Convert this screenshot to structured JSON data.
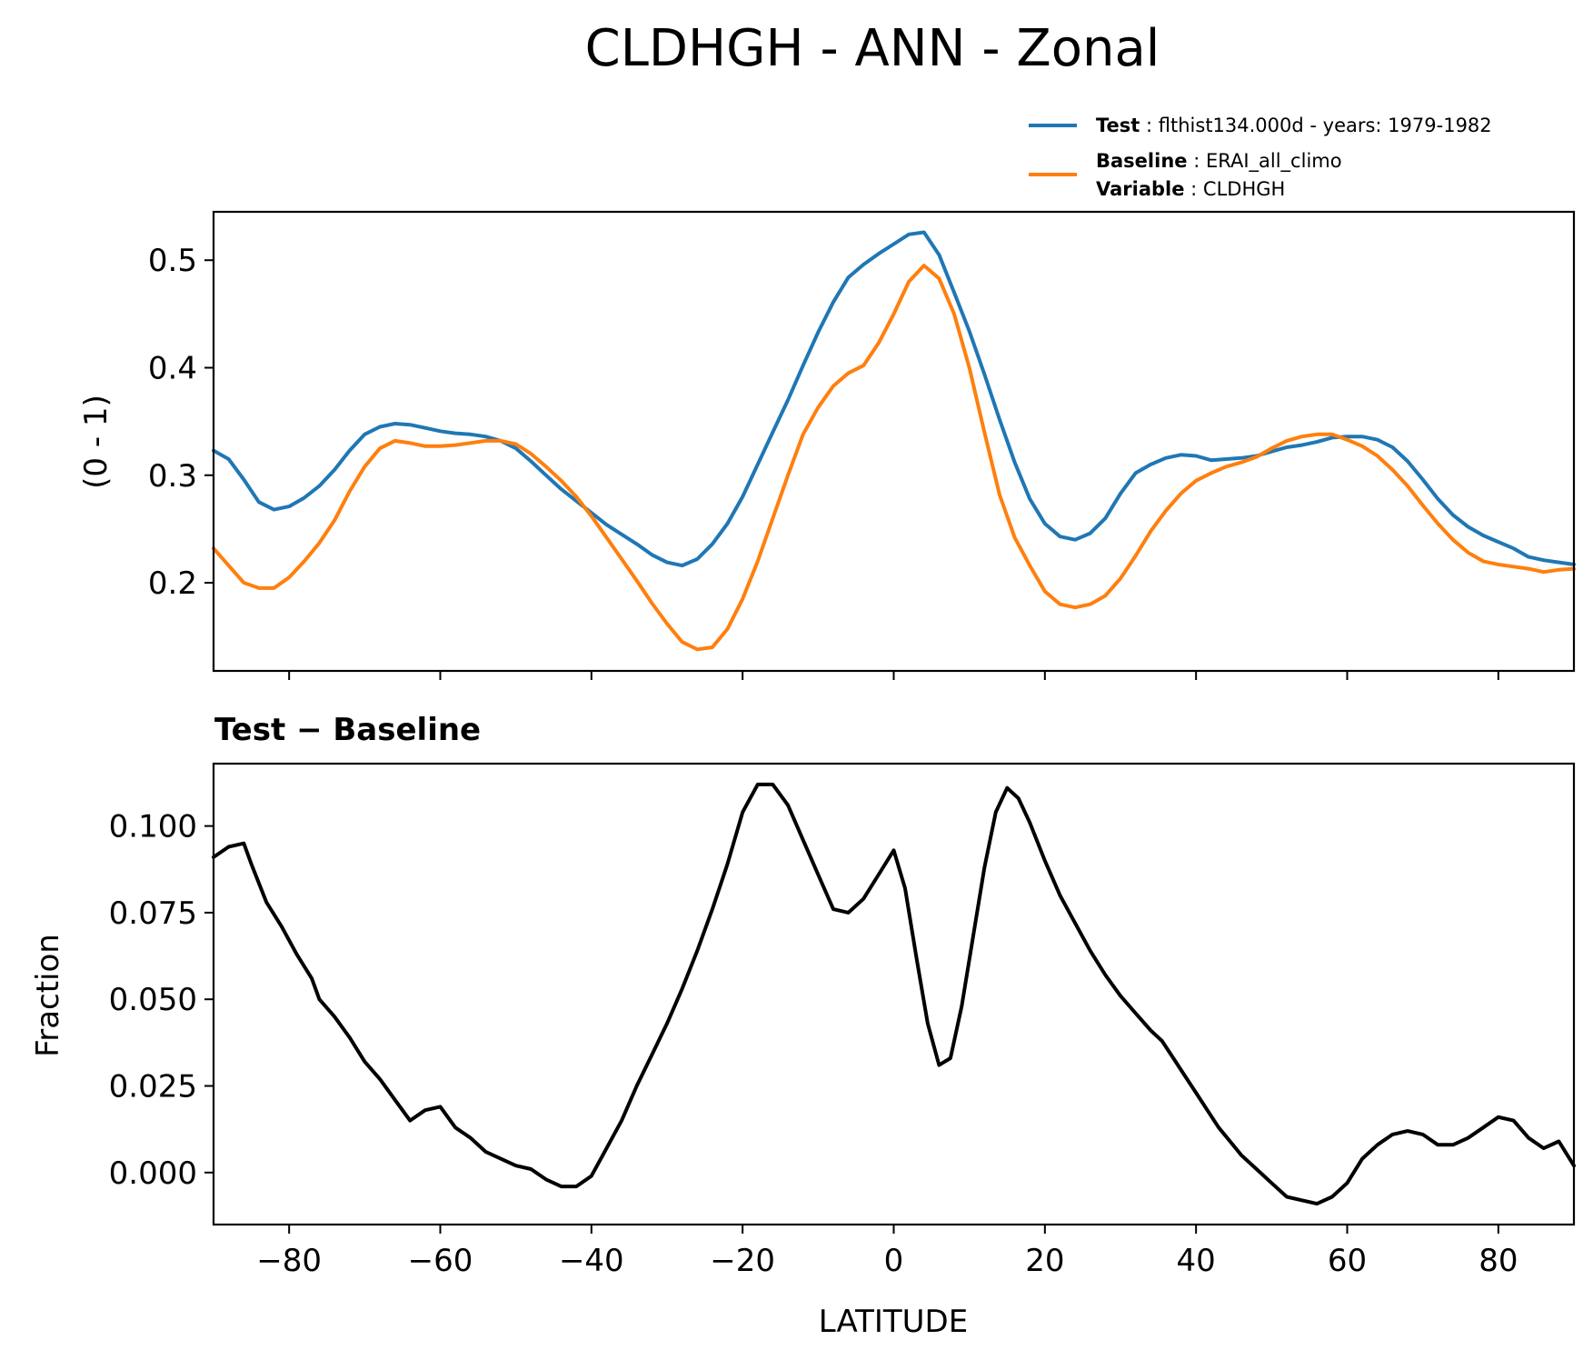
{
  "chart_data": {
    "title": "CLDHGH - ANN - Zonal",
    "colors": {
      "test": "#1f77b4",
      "baseline": "#ff7f0e",
      "diff": "#000000"
    },
    "legend": {
      "test": {
        "key": "Test",
        "text": ": flthist134.000d - years: 1979-1982"
      },
      "baseline": {
        "key": "Baseline",
        "text": ": ERAI_all_climo"
      },
      "variable": {
        "key": "Variable",
        "text": ": CLDHGH"
      }
    },
    "panels": [
      {
        "type": "line",
        "ylabel": "(0 - 1)",
        "xlim": [
          -90,
          90
        ],
        "ylim": [
          0.118,
          0.545
        ],
        "yticks": [
          "0.2",
          "0.3",
          "0.4",
          "0.5"
        ],
        "xticks": [
          -80,
          -60,
          -40,
          -20,
          0,
          20,
          40,
          60,
          80
        ],
        "series": [
          {
            "name": "Test",
            "x": [
              -90,
              -88,
              -86,
              -84,
              -82,
              -80,
              -78,
              -76,
              -74,
              -72,
              -70,
              -68,
              -66,
              -64,
              -62,
              -60,
              -58,
              -56,
              -54,
              -52,
              -50,
              -48,
              -46,
              -44,
              -42,
              -40,
              -38,
              -36,
              -34,
              -32,
              -30,
              -28,
              -26,
              -24,
              -22,
              -20,
              -18,
              -16,
              -14,
              -12,
              -10,
              -8,
              -6,
              -4,
              -2,
              0,
              2,
              4,
              6,
              8,
              10,
              12,
              14,
              16,
              18,
              20,
              22,
              24,
              26,
              28,
              30,
              32,
              34,
              36,
              38,
              40,
              42,
              44,
              46,
              48,
              50,
              52,
              54,
              56,
              58,
              60,
              62,
              64,
              66,
              68,
              70,
              72,
              74,
              76,
              78,
              80,
              82,
              84,
              86,
              88,
              90
            ],
            "y": [
              0.323,
              0.315,
              0.296,
              0.275,
              0.268,
              0.271,
              0.279,
              0.29,
              0.305,
              0.323,
              0.338,
              0.345,
              0.348,
              0.347,
              0.344,
              0.341,
              0.339,
              0.338,
              0.336,
              0.332,
              0.325,
              0.313,
              0.3,
              0.287,
              0.276,
              0.265,
              0.254,
              0.245,
              0.236,
              0.226,
              0.219,
              0.216,
              0.222,
              0.236,
              0.255,
              0.28,
              0.31,
              0.34,
              0.37,
              0.402,
              0.433,
              0.461,
              0.484,
              0.496,
              0.506,
              0.515,
              0.524,
              0.526,
              0.505,
              0.47,
              0.434,
              0.394,
              0.352,
              0.312,
              0.278,
              0.255,
              0.243,
              0.24,
              0.246,
              0.26,
              0.283,
              0.302,
              0.31,
              0.316,
              0.319,
              0.318,
              0.314,
              0.315,
              0.316,
              0.318,
              0.322,
              0.326,
              0.328,
              0.331,
              0.335,
              0.336,
              0.336,
              0.333,
              0.326,
              0.313,
              0.296,
              0.278,
              0.263,
              0.252,
              0.244,
              0.238,
              0.232,
              0.224,
              0.221,
              0.219,
              0.217
            ]
          },
          {
            "name": "Baseline",
            "x": [
              -90,
              -88,
              -86,
              -84,
              -82,
              -80,
              -78,
              -76,
              -74,
              -72,
              -70,
              -68,
              -66,
              -64,
              -62,
              -60,
              -58,
              -56,
              -54,
              -52,
              -50,
              -48,
              -46,
              -44,
              -42,
              -40,
              -38,
              -36,
              -34,
              -32,
              -30,
              -28,
              -26,
              -24,
              -22,
              -20,
              -18,
              -16,
              -14,
              -12,
              -10,
              -8,
              -6,
              -4,
              -2,
              0,
              2,
              4,
              6,
              8,
              10,
              12,
              14,
              16,
              18,
              20,
              22,
              24,
              26,
              28,
              30,
              32,
              34,
              36,
              38,
              40,
              42,
              44,
              46,
              48,
              50,
              52,
              54,
              56,
              58,
              60,
              62,
              64,
              66,
              68,
              70,
              72,
              74,
              76,
              78,
              80,
              82,
              84,
              86,
              88,
              90
            ],
            "y": [
              0.232,
              0.216,
              0.2,
              0.195,
              0.195,
              0.205,
              0.22,
              0.237,
              0.258,
              0.285,
              0.308,
              0.325,
              0.332,
              0.33,
              0.327,
              0.327,
              0.328,
              0.33,
              0.332,
              0.332,
              0.329,
              0.32,
              0.308,
              0.295,
              0.28,
              0.262,
              0.242,
              0.222,
              0.202,
              0.181,
              0.162,
              0.145,
              0.138,
              0.14,
              0.157,
              0.185,
              0.22,
              0.26,
              0.3,
              0.338,
              0.363,
              0.383,
              0.395,
              0.402,
              0.423,
              0.45,
              0.48,
              0.495,
              0.483,
              0.45,
              0.4,
              0.34,
              0.282,
              0.242,
              0.216,
              0.192,
              0.18,
              0.177,
              0.18,
              0.188,
              0.204,
              0.225,
              0.248,
              0.267,
              0.283,
              0.295,
              0.302,
              0.308,
              0.312,
              0.317,
              0.325,
              0.332,
              0.336,
              0.338,
              0.338,
              0.333,
              0.327,
              0.318,
              0.305,
              0.29,
              0.272,
              0.255,
              0.24,
              0.228,
              0.22,
              0.217,
              0.215,
              0.213,
              0.21,
              0.212,
              0.213
            ]
          }
        ]
      },
      {
        "type": "line",
        "title": "Test − Baseline",
        "ylabel": "Fraction",
        "xlabel": "LATITUDE",
        "xlim": [
          -90,
          90
        ],
        "ylim": [
          -0.015,
          0.118
        ],
        "yticks": [
          "0.000",
          "0.025",
          "0.050",
          "0.075",
          "0.100"
        ],
        "xticks": [
          -80,
          -60,
          -40,
          -20,
          0,
          20,
          40,
          60,
          80
        ],
        "xticklabels": [
          "−80",
          "−60",
          "−40",
          "−20",
          "0",
          "20",
          "40",
          "60",
          "80"
        ],
        "series": [
          {
            "x": [
              -90,
              -88,
              -86,
              -85,
              -83,
              -81,
              -79,
              -77,
              -76,
              -74,
              -72,
              -70,
              -68,
              -66,
              -64,
              -62,
              -60,
              -58,
              -56,
              -54,
              -52,
              -50,
              -48,
              -46,
              -44,
              -42,
              -40,
              -38,
              -36,
              -34,
              -32,
              -30,
              -28,
              -26,
              -24,
              -22,
              -20,
              -18,
              -16,
              -14,
              -12,
              -10,
              -8,
              -6,
              -4,
              -2,
              0,
              1.5,
              3,
              4.5,
              6,
              7.5,
              9,
              10.5,
              12,
              13.5,
              15,
              16.5,
              18,
              20,
              22,
              24,
              26,
              28,
              30,
              32,
              34,
              35.5,
              37,
              38.5,
              40,
              41.5,
              43,
              44.5,
              46,
              48,
              50,
              52,
              54,
              56,
              58,
              60,
              62,
              64,
              66,
              68,
              70,
              72,
              74,
              76,
              78,
              80,
              82,
              84,
              86,
              88,
              90
            ],
            "y": [
              0.091,
              0.094,
              0.095,
              0.089,
              0.078,
              0.071,
              0.063,
              0.056,
              0.05,
              0.045,
              0.039,
              0.032,
              0.027,
              0.021,
              0.015,
              0.018,
              0.019,
              0.013,
              0.01,
              0.006,
              0.004,
              0.002,
              0.001,
              -0.002,
              -0.004,
              -0.004,
              -0.001,
              0.007,
              0.015,
              0.025,
              0.034,
              0.043,
              0.053,
              0.064,
              0.076,
              0.089,
              0.104,
              0.112,
              0.112,
              0.106,
              0.096,
              0.086,
              0.076,
              0.075,
              0.079,
              0.086,
              0.093,
              0.082,
              0.062,
              0.043,
              0.031,
              0.033,
              0.048,
              0.068,
              0.088,
              0.104,
              0.111,
              0.108,
              0.101,
              0.09,
              0.08,
              0.072,
              0.064,
              0.057,
              0.051,
              0.046,
              0.041,
              0.038,
              0.033,
              0.028,
              0.023,
              0.018,
              0.013,
              0.009,
              0.005,
              0.001,
              -0.003,
              -0.007,
              -0.008,
              -0.009,
              -0.007,
              -0.003,
              0.004,
              0.008,
              0.011,
              0.012,
              0.011,
              0.008,
              0.008,
              0.01,
              0.013,
              0.016,
              0.015,
              0.01,
              0.007,
              0.009,
              0.002
            ]
          }
        ]
      }
    ]
  }
}
